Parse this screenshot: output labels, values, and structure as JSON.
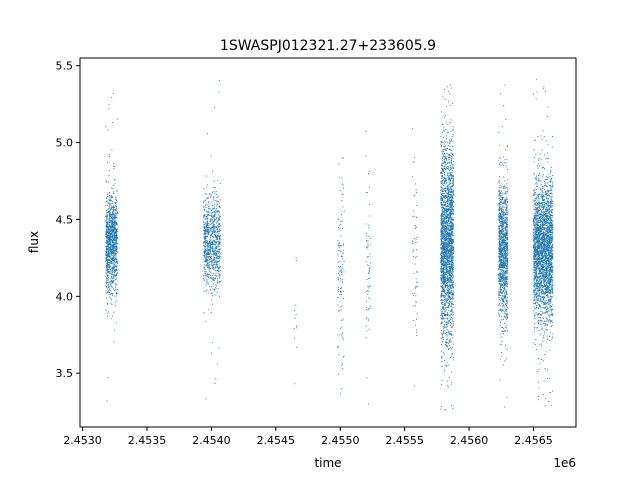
{
  "chart_data": {
    "type": "scatter",
    "title": "1SWASPJ012321.27+233605.9",
    "xlabel": "time",
    "ylabel": "flux",
    "x_offset_label": "1e6",
    "xlim": [
      2452980,
      2456830
    ],
    "ylim": [
      3.15,
      5.55
    ],
    "x_ticks": [
      2453000,
      2453500,
      2454000,
      2454500,
      2455000,
      2455500,
      2456000,
      2456500
    ],
    "x_tick_labels": [
      "2.4530",
      "2.4535",
      "2.4540",
      "2.4545",
      "2.4550",
      "2.4555",
      "2.4560",
      "2.4565"
    ],
    "y_ticks": [
      3.5,
      4.0,
      4.5,
      5.0,
      5.5
    ],
    "y_tick_labels": [
      "3.5",
      "4.0",
      "4.5",
      "5.0",
      "5.5"
    ],
    "grid": false,
    "legend": "none",
    "point_color": "#1f77b4",
    "series": [
      {
        "clusters": [
          {
            "t_start": 2453180,
            "t_end": 2453270,
            "y_center": 4.35,
            "y_sd": 0.16,
            "y_min": 3.3,
            "y_max": 5.38,
            "n": 1200
          },
          {
            "t_start": 2453940,
            "t_end": 2454070,
            "y_center": 4.35,
            "y_sd": 0.15,
            "y_min": 3.3,
            "y_max": 5.43,
            "n": 900
          },
          {
            "t_start": 2454640,
            "t_end": 2454665,
            "y_center": 3.9,
            "y_sd": 0.3,
            "y_min": 3.25,
            "y_max": 4.25,
            "n": 12
          },
          {
            "t_start": 2454980,
            "t_end": 2455030,
            "y_center": 4.15,
            "y_sd": 0.35,
            "y_min": 3.28,
            "y_max": 4.9,
            "n": 120
          },
          {
            "t_start": 2455200,
            "t_end": 2455235,
            "y_center": 4.2,
            "y_sd": 0.3,
            "y_min": 3.3,
            "y_max": 5.22,
            "n": 70
          },
          {
            "t_start": 2455560,
            "t_end": 2455600,
            "y_center": 4.2,
            "y_sd": 0.35,
            "y_min": 3.25,
            "y_max": 5.32,
            "n": 60
          },
          {
            "t_start": 2455780,
            "t_end": 2455880,
            "y_center": 4.35,
            "y_sd": 0.3,
            "y_min": 3.26,
            "y_max": 5.43,
            "n": 2500
          },
          {
            "t_start": 2456230,
            "t_end": 2456300,
            "y_center": 4.3,
            "y_sd": 0.22,
            "y_min": 3.27,
            "y_max": 5.42,
            "n": 1300
          },
          {
            "t_start": 2456500,
            "t_end": 2456650,
            "y_center": 4.3,
            "y_sd": 0.22,
            "y_min": 3.27,
            "y_max": 5.43,
            "n": 2800
          }
        ]
      }
    ]
  }
}
